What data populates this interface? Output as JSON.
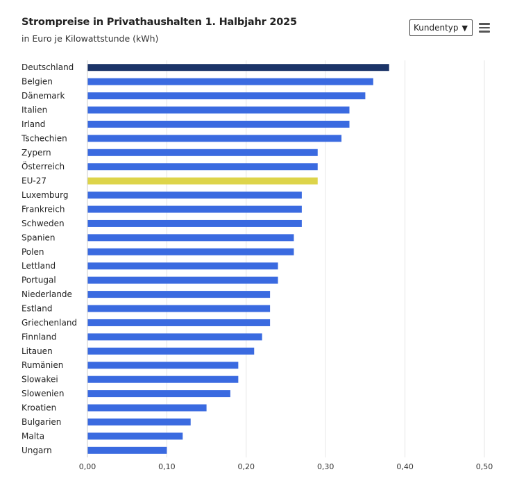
{
  "header": {
    "title": "Strompreise in Privathaushalten 1. Halbjahr 2025",
    "subtitle": "in Euro je Kilowattstunde (kWh)"
  },
  "controls": {
    "select_label": "Kundentyp",
    "select_caret": "▼",
    "menu_icon": "hamburger-menu-icon"
  },
  "colors": {
    "bar": "#3a6ae0",
    "highlight_germany": "#1c3468",
    "highlight_eu": "#ddd44a",
    "grid": "#e6e6e6"
  },
  "chart_data": {
    "type": "bar",
    "orientation": "horizontal",
    "categories": [
      "Deutschland",
      "Belgien",
      "Dänemark",
      "Italien",
      "Irland",
      "Tschechien",
      "Zypern",
      "Österreich",
      "EU-27",
      "Luxemburg",
      "Frankreich",
      "Schweden",
      "Spanien",
      "Polen",
      "Lettland",
      "Portugal",
      "Niederlande",
      "Estland",
      "Griechenland",
      "Finnland",
      "Litauen",
      "Rumänien",
      "Slowakei",
      "Slowenien",
      "Kroatien",
      "Bulgarien",
      "Malta",
      "Ungarn"
    ],
    "values": [
      0.38,
      0.36,
      0.35,
      0.33,
      0.33,
      0.32,
      0.29,
      0.29,
      0.29,
      0.27,
      0.27,
      0.27,
      0.26,
      0.26,
      0.24,
      0.24,
      0.23,
      0.23,
      0.23,
      0.22,
      0.21,
      0.19,
      0.19,
      0.18,
      0.15,
      0.13,
      0.12,
      0.1
    ],
    "highlight": {
      "Deutschland": "highlight_germany",
      "EU-27": "highlight_eu"
    },
    "xlim": [
      0,
      0.5
    ],
    "xticks": [
      "0,00",
      "0,10",
      "0,20",
      "0,30",
      "0,40",
      "0,50"
    ],
    "xtick_values": [
      0,
      0.1,
      0.2,
      0.3,
      0.4,
      0.5
    ],
    "grid": true,
    "legend": "none"
  }
}
